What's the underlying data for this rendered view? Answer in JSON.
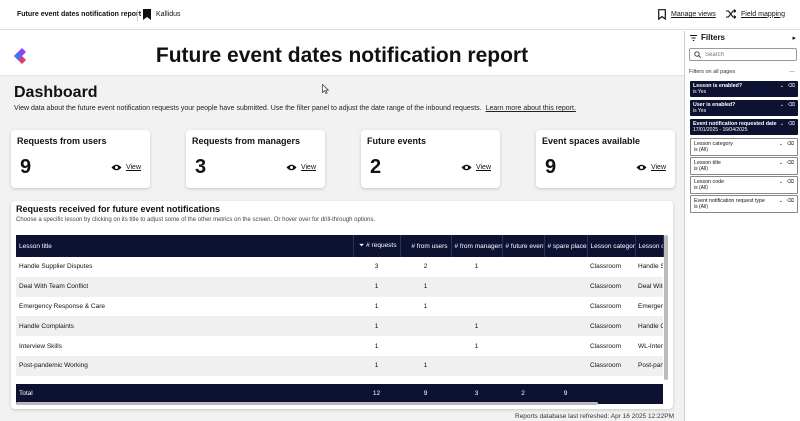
{
  "topbar": {
    "report_name": "Future event dates notification report",
    "org_name": "Kallidus",
    "manage_views": "Manage views",
    "field_mapping": "Field mapping"
  },
  "header": {
    "title": "Future event dates notification report"
  },
  "dashboard": {
    "title": "Dashboard",
    "description": "View data about the future event notification requests your people have submitted. Use the filter panel to adjust the date range of the inbound requests.",
    "learn_more": "Learn more about this report."
  },
  "cards": [
    {
      "title": "Requests from users",
      "value": "9",
      "view": "View"
    },
    {
      "title": "Requests from managers",
      "value": "3",
      "view": "View"
    },
    {
      "title": "Future events",
      "value": "2",
      "view": "View"
    },
    {
      "title": "Event spaces available",
      "value": "9",
      "view": "View"
    }
  ],
  "table_panel": {
    "title": "Requests received for future event notifications",
    "subtitle": "Choose a specific lesson by clicking on its title to adjust some of the other metrics on the screen. Or hover over for drill-through options.",
    "columns": [
      "Lesson title",
      "# requests",
      "# from users",
      "# from managers",
      "# future events",
      "# spare places",
      "Lesson category",
      "Lesson cod"
    ],
    "rows": [
      [
        "Handle Supplier Disputes",
        "3",
        "2",
        "1",
        "",
        "",
        "Classroom",
        "Handle Su"
      ],
      [
        "Deal With Team Conflict",
        "1",
        "1",
        "",
        "",
        "",
        "Classroom",
        "Deal With T"
      ],
      [
        "Emergency Response & Care",
        "1",
        "1",
        "",
        "",
        "",
        "Classroom",
        "Emergency"
      ],
      [
        "Handle Complaints",
        "1",
        "",
        "1",
        "",
        "",
        "Classroom",
        "Handle Co"
      ],
      [
        "Interview Skills",
        "1",
        "",
        "1",
        "",
        "",
        "Classroom",
        "WL-Intervie"
      ],
      [
        "Post-pandemic Working",
        "1",
        "1",
        "",
        "",
        "",
        "Classroom",
        "Post-pande"
      ]
    ],
    "total": [
      "Total",
      "12",
      "9",
      "3",
      "2",
      "9",
      "",
      ""
    ]
  },
  "refreshed": "Reports database last refreshed: Apr 16 2025 12:22PM",
  "filters": {
    "title": "Filters",
    "search_placeholder": "Search",
    "all_pages_label": "Filters on all pages",
    "items": [
      {
        "name": "Lesson is enabled?",
        "value": "is Yes",
        "active": true
      },
      {
        "name": "User is enabled?",
        "value": "is Yes",
        "active": true
      },
      {
        "name": "Event notification requested date",
        "value": "17/01/2025 - 16/04/2025",
        "active": true
      },
      {
        "name": "Lesson category",
        "value": "is (All)",
        "active": false
      },
      {
        "name": "Lesson title",
        "value": "is (All)",
        "active": false
      },
      {
        "name": "Lesson code",
        "value": "is (All)",
        "active": false
      },
      {
        "name": "Event notification request type",
        "value": "is (All)",
        "active": false
      }
    ]
  },
  "icons": {
    "bookmark": "bookmark-icon",
    "manage_views": "bookmark-outline-icon",
    "field_mapping": "shuffle-icon",
    "view": "eye-icon",
    "filter": "filter-icon",
    "search": "search-icon"
  },
  "colors": {
    "navy": "#0d1233",
    "logo_purple": "#8a3ffc",
    "logo_blue": "#2f7df6"
  }
}
